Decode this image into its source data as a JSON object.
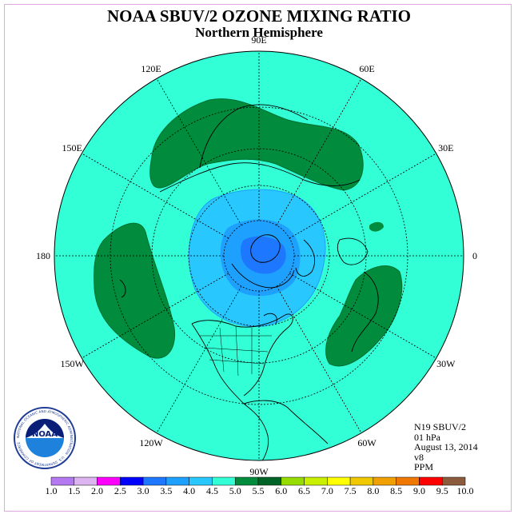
{
  "header": {
    "title": "NOAA SBUV/2 OZONE MIXING RATIO",
    "subtitle": "Northern Hemisphere"
  },
  "map": {
    "projection": "polar-stereographic-north",
    "background_color": "#33ffd6",
    "longitude_labels": [
      "90E",
      "60E",
      "30E",
      "0",
      "30W",
      "60W",
      "90W",
      "120W",
      "150W",
      "180",
      "150E",
      "120E"
    ],
    "longitude_values": [
      90,
      60,
      30,
      0,
      -30,
      -60,
      -90,
      -120,
      -150,
      180,
      150,
      120
    ]
  },
  "info": {
    "satellite": "N19 SBUV/2",
    "pressure": "01 hPa",
    "date": "August 13, 2014",
    "version": "v8",
    "units": "PPM"
  },
  "colorbar": {
    "ticks": [
      "1.0",
      "1.5",
      "2.0",
      "2.5",
      "3.0",
      "3.5",
      "4.0",
      "4.5",
      "5.0",
      "5.5",
      "6.0",
      "6.5",
      "7.0",
      "7.5",
      "8.0",
      "8.5",
      "9.0",
      "9.5",
      "10.0"
    ],
    "colors": [
      "#b478f0",
      "#dcb4f0",
      "#ff00ff",
      "#0000ff",
      "#1e78ff",
      "#1ea0ff",
      "#28c8ff",
      "#33ffd6",
      "#008c3c",
      "#006428",
      "#96dc00",
      "#c8f000",
      "#ffff00",
      "#f0c800",
      "#f0a000",
      "#f07800",
      "#ff0000",
      "#c80000",
      "#8c5a3c"
    ]
  },
  "logo": {
    "text": "NOAA",
    "ring_text": "NATIONAL OCEANIC AND ATMOSPHERIC ADMINISTRATION · U.S. DEPARTMENT OF COMMERCE"
  }
}
